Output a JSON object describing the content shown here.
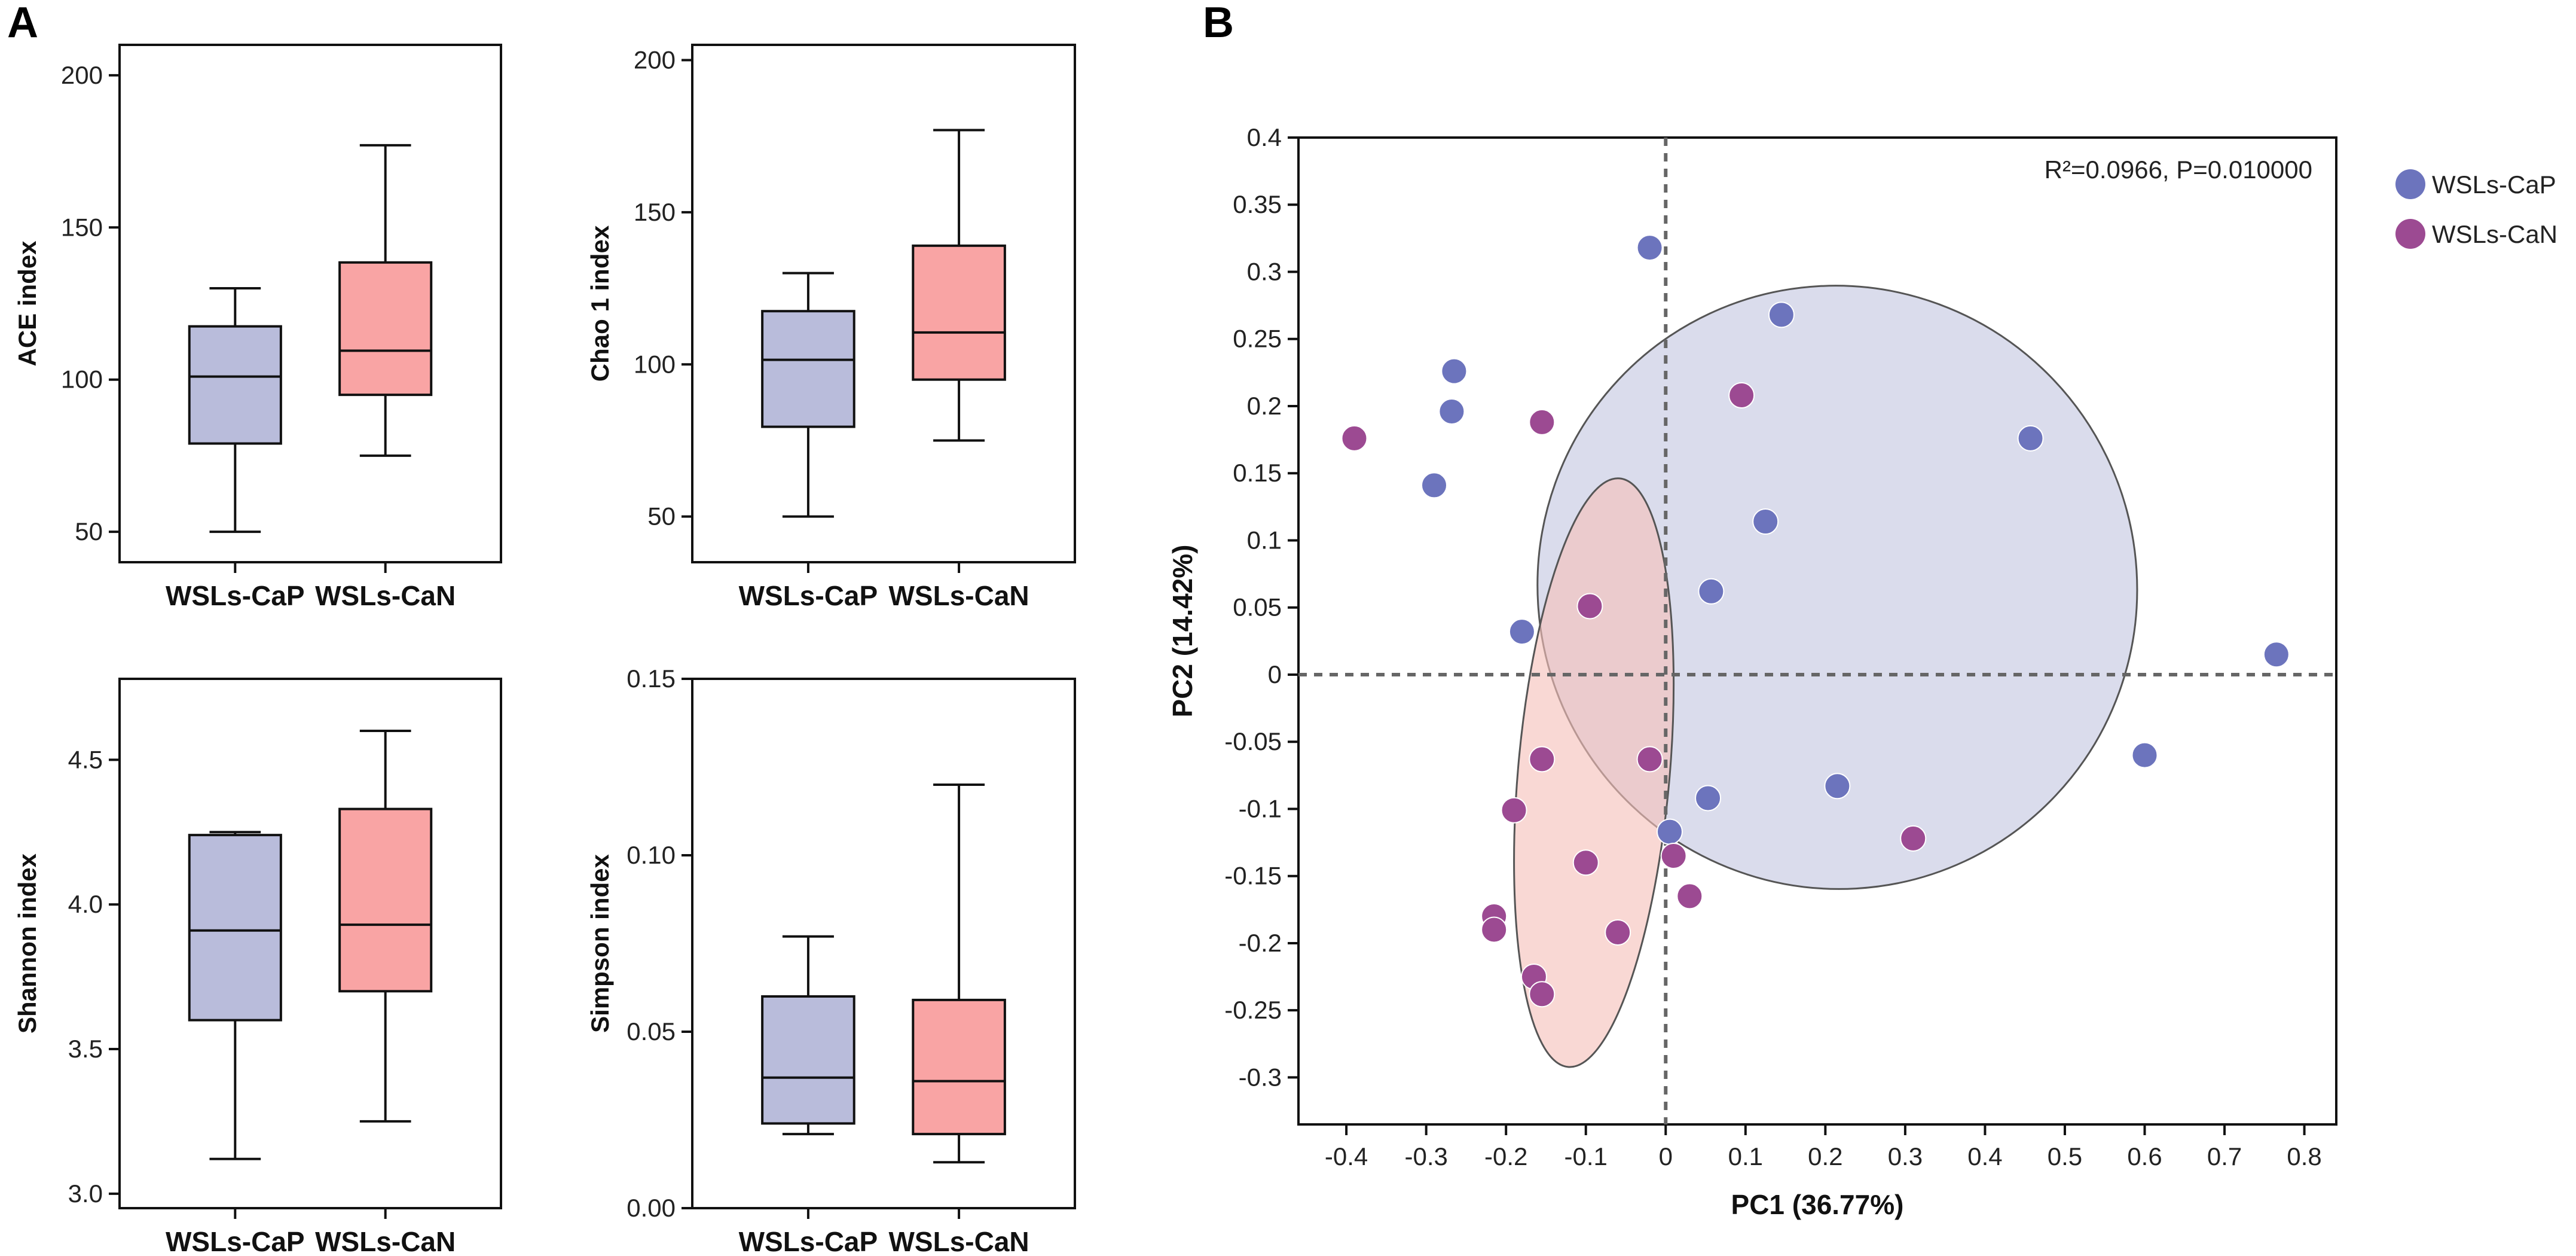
{
  "panel_labels": {
    "a": "A",
    "b": "B"
  },
  "colors": {
    "cap_box": "#b9bcdb",
    "can_box": "#f9a4a4",
    "cap_point": "#6c74bd",
    "can_point": "#9c4a92",
    "cap_ellipse": "#c3c6e0",
    "can_ellipse": "#f6c0ba",
    "line": "#111111"
  },
  "chart_data": [
    {
      "type": "boxplot",
      "ylabel": "ACE index",
      "categories": [
        "WSLs-CaP",
        "WSLs-CaN"
      ],
      "ylim": [
        40,
        210
      ],
      "yticks": [
        50,
        100,
        150,
        200
      ],
      "boxes": [
        {
          "group": "WSLs-CaP",
          "min": 50,
          "q1": 79,
          "median": 101,
          "q3": 117.5,
          "max": 130
        },
        {
          "group": "WSLs-CaN",
          "min": 75,
          "q1": 95,
          "median": 109.5,
          "q3": 138.5,
          "max": 177
        }
      ]
    },
    {
      "type": "boxplot",
      "ylabel": "Chao 1 index",
      "categories": [
        "WSLs-CaP",
        "WSLs-CaN"
      ],
      "ylim": [
        35,
        205
      ],
      "yticks": [
        50,
        100,
        150,
        200
      ],
      "boxes": [
        {
          "group": "WSLs-CaP",
          "min": 50,
          "q1": 79.5,
          "median": 101.5,
          "q3": 117.5,
          "max": 130
        },
        {
          "group": "WSLs-CaN",
          "min": 75,
          "q1": 95,
          "median": 110.5,
          "q3": 139,
          "max": 177
        }
      ]
    },
    {
      "type": "boxplot",
      "ylabel": "Shannon index",
      "categories": [
        "WSLs-CaP",
        "WSLs-CaN"
      ],
      "ylim": [
        2.95,
        4.78
      ],
      "yticks": [
        3.0,
        3.5,
        4.0,
        4.5
      ],
      "tick_decimals": 1,
      "boxes": [
        {
          "group": "WSLs-CaP",
          "min": 3.12,
          "q1": 3.6,
          "median": 3.91,
          "q3": 4.24,
          "max": 4.25
        },
        {
          "group": "WSLs-CaN",
          "min": 3.25,
          "q1": 3.7,
          "median": 3.93,
          "q3": 4.33,
          "max": 4.6
        }
      ]
    },
    {
      "type": "boxplot",
      "ylabel": "Simpson index",
      "categories": [
        "WSLs-CaP",
        "WSLs-CaN"
      ],
      "ylim": [
        0.0,
        0.15
      ],
      "yticks": [
        0.0,
        0.05,
        0.1,
        0.15
      ],
      "tick_decimals": 2,
      "boxes": [
        {
          "group": "WSLs-CaP",
          "min": 0.021,
          "q1": 0.024,
          "median": 0.037,
          "q3": 0.06,
          "max": 0.077
        },
        {
          "group": "WSLs-CaN",
          "min": 0.013,
          "q1": 0.021,
          "median": 0.036,
          "q3": 0.059,
          "max": 0.12
        }
      ]
    },
    {
      "type": "scatter",
      "title": "",
      "xlabel": "PC1 (36.77%)",
      "ylabel": "PC2 (14.42%)",
      "xlim": [
        -0.46,
        0.84
      ],
      "ylim": [
        -0.335,
        0.4
      ],
      "xticks": [
        -0.4,
        -0.3,
        -0.2,
        -0.1,
        0,
        0.1,
        0.2,
        0.3,
        0.4,
        0.5,
        0.6,
        0.7,
        0.8
      ],
      "yticks": [
        -0.3,
        -0.25,
        -0.2,
        -0.15,
        -0.1,
        -0.05,
        0,
        0.05,
        0.1,
        0.15,
        0.2,
        0.25,
        0.3,
        0.35,
        0.4
      ],
      "annotation": "R²=0.0966, P=0.010000",
      "legend_position": "outside-right-top",
      "series": [
        {
          "name": "WSLs-CaP",
          "points": [
            [
              -0.02,
              0.318
            ],
            [
              0.145,
              0.268
            ],
            [
              -0.265,
              0.226
            ],
            [
              -0.268,
              0.196
            ],
            [
              -0.29,
              0.141
            ],
            [
              0.457,
              0.176
            ],
            [
              0.125,
              0.114
            ],
            [
              0.057,
              0.062
            ],
            [
              -0.18,
              0.032
            ],
            [
              0.765,
              0.015
            ],
            [
              0.6,
              -0.06
            ],
            [
              0.215,
              -0.083
            ],
            [
              0.053,
              -0.092
            ],
            [
              0.005,
              -0.117
            ]
          ],
          "ellipse": {
            "cx": 0.215,
            "cy": 0.065,
            "rx": 0.375,
            "ry": 0.225,
            "angle_deg": -25
          }
        },
        {
          "name": "WSLs-CaN",
          "points": [
            [
              -0.39,
              0.176
            ],
            [
              -0.155,
              0.188
            ],
            [
              0.095,
              0.208
            ],
            [
              -0.095,
              0.051
            ],
            [
              -0.155,
              -0.063
            ],
            [
              -0.02,
              -0.063
            ],
            [
              -0.19,
              -0.101
            ],
            [
              -0.1,
              -0.14
            ],
            [
              0.01,
              -0.135
            ],
            [
              0.03,
              -0.165
            ],
            [
              -0.215,
              -0.18
            ],
            [
              -0.215,
              -0.19
            ],
            [
              -0.06,
              -0.192
            ],
            [
              -0.165,
              -0.225
            ],
            [
              -0.155,
              -0.238
            ],
            [
              0.31,
              -0.122
            ]
          ],
          "ellipse": {
            "cx": -0.09,
            "cy": -0.073,
            "rx": 0.095,
            "ry": 0.22,
            "angle_deg": 5
          }
        }
      ]
    }
  ]
}
